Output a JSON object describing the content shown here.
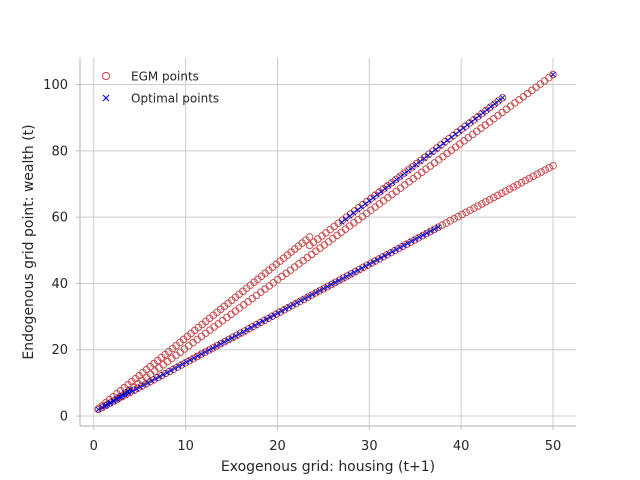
{
  "chart_data": {
    "type": "scatter",
    "xlabel": "Exogenous grid: housing (t+1)",
    "ylabel": "Endogenous grid point: wealth (t)",
    "xlim": [
      -1.5,
      52.5
    ],
    "ylim": [
      -3,
      108
    ],
    "xticks": [
      0,
      10,
      20,
      30,
      40,
      50
    ],
    "yticks": [
      0,
      20,
      40,
      60,
      80,
      100
    ],
    "grid": true,
    "legend_position": "top-left",
    "series": [
      {
        "name": "EGM points",
        "marker": "circle-open",
        "color": "#c44e52",
        "segments": [
          {
            "x_start": 0.5,
            "x_end": 23.5,
            "y_start": 2.2,
            "y_end": 54.0,
            "n": 58
          },
          {
            "x_start": 23.5,
            "x_end": 44.5,
            "y_start": 51.5,
            "y_end": 96.0,
            "n": 48
          },
          {
            "x_start": 2.5,
            "x_end": 50.0,
            "y_start": 5.0,
            "y_end": 103.0,
            "n": 104
          },
          {
            "x_start": 0.5,
            "x_end": 50.0,
            "y_start": 2.0,
            "y_end": 75.5,
            "n": 116
          }
        ]
      },
      {
        "name": "Optimal points",
        "marker": "x",
        "color": "#0000cc",
        "segments": [
          {
            "x_start": 1.2,
            "x_end": 4.0,
            "y_start": 3.0,
            "y_end": 8.0,
            "n": 10
          },
          {
            "x_start": 27.0,
            "x_end": 44.5,
            "y_start": 58.5,
            "y_end": 96.0,
            "n": 42
          },
          {
            "x_start": 50.0,
            "x_end": 50.0,
            "y_start": 103.0,
            "y_end": 103.0,
            "n": 1
          },
          {
            "x_start": 0.5,
            "x_end": 37.5,
            "y_start": 2.0,
            "y_end": 57.0,
            "n": 90
          }
        ]
      }
    ]
  }
}
